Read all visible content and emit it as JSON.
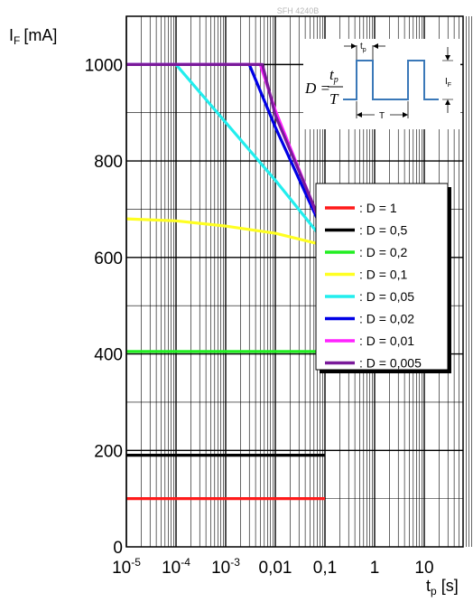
{
  "header": {
    "part_number": "SFH 4240B"
  },
  "chart_data": {
    "type": "line",
    "title": "",
    "xlabel": {
      "main": "t",
      "sub": "p",
      "unit": "[s]"
    },
    "ylabel": {
      "main": "I",
      "sub": "F",
      "unit": "[mA]"
    },
    "x_scale": "log",
    "xlim": [
      1e-05,
      100
    ],
    "ylim": [
      0,
      1100
    ],
    "grid": true,
    "y_ticks": [
      {
        "value": 0,
        "label": "0"
      },
      {
        "value": 200,
        "label": "200"
      },
      {
        "value": 400,
        "label": "400"
      },
      {
        "value": 600,
        "label": "600"
      },
      {
        "value": 800,
        "label": "800"
      },
      {
        "value": 1000,
        "label": "1000"
      }
    ],
    "x_ticks": [
      {
        "value": 1e-05,
        "base": "10",
        "exp": "-5",
        "label": ""
      },
      {
        "value": 0.0001,
        "base": "10",
        "exp": "-4",
        "label": ""
      },
      {
        "value": 0.001,
        "base": "10",
        "exp": "-3",
        "label": ""
      },
      {
        "value": 0.01,
        "base": "",
        "exp": "",
        "label": "0,01"
      },
      {
        "value": 0.1,
        "base": "",
        "exp": "",
        "label": "0,1"
      },
      {
        "value": 1,
        "base": "",
        "exp": "",
        "label": "1"
      },
      {
        "value": 10,
        "base": "",
        "exp": "",
        "label": "10"
      }
    ],
    "legend_position": "right",
    "series": [
      {
        "name": ": D = 1",
        "color": "#ff1a1a",
        "points": [
          [
            1e-05,
            100
          ],
          [
            0.1,
            100
          ]
        ]
      },
      {
        "name": ": D = 0,5",
        "color": "#000000",
        "points": [
          [
            1e-05,
            190
          ],
          [
            0.1,
            190
          ]
        ]
      },
      {
        "name": ": D = 0,2",
        "color": "#22ee22",
        "points": [
          [
            1e-05,
            405
          ],
          [
            0.1,
            405
          ]
        ]
      },
      {
        "name": ": D = 0,1",
        "color": "#ffff22",
        "points": [
          [
            1e-05,
            680
          ],
          [
            0.0001,
            676
          ],
          [
            0.001,
            665
          ],
          [
            0.01,
            650
          ],
          [
            0.1,
            625
          ]
        ]
      },
      {
        "name": ": D = 0,05",
        "color": "#22eeee",
        "points": [
          [
            1e-05,
            1000
          ],
          [
            0.0001,
            1000
          ],
          [
            0.001,
            880
          ],
          [
            0.01,
            760
          ],
          [
            0.1,
            632
          ]
        ]
      },
      {
        "name": ": D = 0,02",
        "color": "#0000e6",
        "points": [
          [
            1e-05,
            1000
          ],
          [
            0.003,
            1000
          ],
          [
            0.01,
            870
          ],
          [
            0.1,
            645
          ]
        ]
      },
      {
        "name": ": D = 0,01",
        "color": "#ff22ff",
        "points": [
          [
            1e-05,
            1000
          ],
          [
            0.005,
            1000
          ],
          [
            0.01,
            905
          ],
          [
            0.1,
            648
          ]
        ]
      },
      {
        "name": ": D = 0,005",
        "color": "#7a1a9a",
        "points": [
          [
            1e-05,
            1000
          ],
          [
            0.0055,
            1000
          ],
          [
            0.01,
            895
          ],
          [
            0.1,
            652
          ]
        ]
      }
    ],
    "inset": {
      "formula_lhs": "D =",
      "numerator": "t",
      "numerator_sub": "p",
      "denominator": "T",
      "pulse_width_label": "t",
      "pulse_width_sub": "p",
      "period_label": "T",
      "amplitude_label": "I",
      "amplitude_sub": "F",
      "pulse_color": "#3a78b8"
    }
  }
}
